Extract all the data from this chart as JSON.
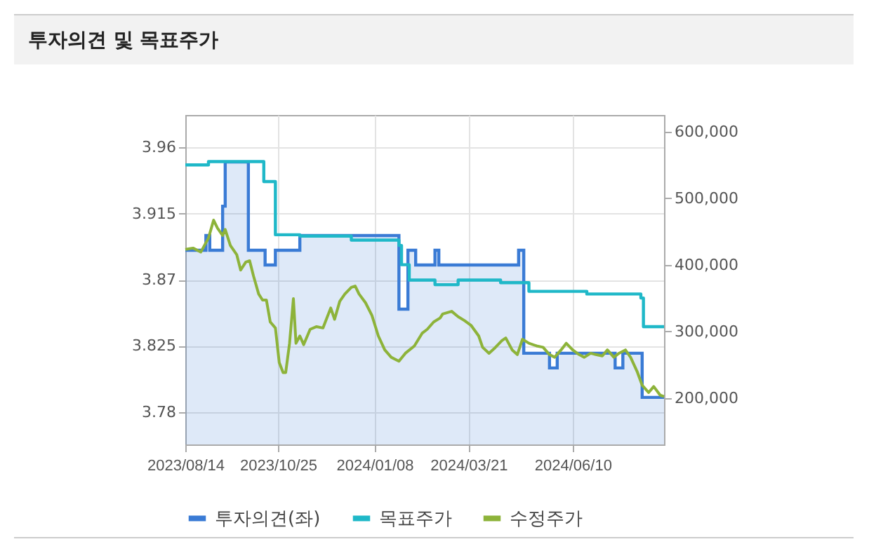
{
  "chart_data": {
    "type": "line",
    "title": "투자의견 및 목표주가",
    "xlim": [
      "2023-08-14",
      "2024-08-20"
    ],
    "xticks": [
      {
        "value": "2023-08-14",
        "label": "2023/08/14"
      },
      {
        "value": "2023-10-25",
        "label": "2023/10/25"
      },
      {
        "value": "2024-01-08",
        "label": "2024/01/08"
      },
      {
        "value": "2024-03-21",
        "label": "2024/03/21"
      },
      {
        "value": "2024-06-10",
        "label": "2024/06/10"
      }
    ],
    "ylim": [
      3.758,
      3.982
    ],
    "yticks": [
      3.78,
      3.825,
      3.87,
      3.915,
      3.96
    ],
    "y2lim": [
      130000,
      625000
    ],
    "y2ticks": [
      {
        "value": 200000,
        "label": "200,000"
      },
      {
        "value": 300000,
        "label": "300,000"
      },
      {
        "value": 400000,
        "label": "400,000"
      },
      {
        "value": 500000,
        "label": "500,000"
      },
      {
        "value": 600000,
        "label": "600,000"
      }
    ],
    "grid": true,
    "legend": "bottom",
    "marker": "none",
    "series": [
      {
        "name": "투자의견(좌)",
        "type": "area",
        "color": "#3a7bd5",
        "x": [
          "2023-08-14",
          "2023-08-30",
          "2023-08-30",
          "2023-09-02",
          "2023-09-02",
          "2023-09-12",
          "2023-09-12",
          "2023-09-14",
          "2023-09-14",
          "2023-10-02",
          "2023-10-02",
          "2023-10-15",
          "2023-10-15",
          "2023-10-23",
          "2023-10-23",
          "2023-11-11",
          "2023-11-11",
          "2024-01-27",
          "2024-01-27",
          "2024-02-03",
          "2024-02-03",
          "2024-02-09",
          "2024-02-09",
          "2024-02-24",
          "2024-02-24",
          "2024-02-27",
          "2024-02-27",
          "2024-04-29",
          "2024-04-29",
          "2024-05-03",
          "2024-05-03",
          "2024-05-23",
          "2024-05-23",
          "2024-05-29",
          "2024-05-29",
          "2024-07-13",
          "2024-07-13",
          "2024-07-19",
          "2024-07-19",
          "2024-08-03",
          "2024-08-03",
          "2024-08-20"
        ],
        "values": [
          3.89,
          3.89,
          3.9,
          3.9,
          3.89,
          3.89,
          3.92,
          3.92,
          3.95,
          3.95,
          3.89,
          3.89,
          3.88,
          3.88,
          3.89,
          3.89,
          3.9,
          3.9,
          3.85,
          3.85,
          3.89,
          3.89,
          3.88,
          3.88,
          3.89,
          3.89,
          3.88,
          3.88,
          3.89,
          3.89,
          3.82,
          3.82,
          3.81,
          3.81,
          3.82,
          3.82,
          3.81,
          3.81,
          3.82,
          3.82,
          3.79,
          3.79
        ]
      },
      {
        "name": "목표주가",
        "type": "step",
        "axis": "y2",
        "color": "#1fb8c8",
        "x": [
          "2023-08-14",
          "2023-09-01",
          "2023-10-14",
          "2023-10-23",
          "2023-11-11",
          "2023-12-21",
          "2024-01-27",
          "2024-01-29",
          "2024-02-04",
          "2024-02-24",
          "2024-03-13",
          "2024-04-15",
          "2024-05-07",
          "2024-06-21",
          "2024-08-02",
          "2024-08-04",
          "2024-08-20"
        ],
        "values": [
          550000,
          555000,
          525000,
          445000,
          443000,
          437000,
          429000,
          400000,
          377000,
          370000,
          377000,
          373000,
          360000,
          356000,
          350000,
          307000,
          307000
        ]
      },
      {
        "name": "수정주가",
        "type": "line",
        "axis": "y2",
        "color": "#8db33a",
        "x": [
          "2023-08-14",
          "2023-08-20",
          "2023-08-26",
          "2023-09-01",
          "2023-09-05",
          "2023-09-08",
          "2023-09-12",
          "2023-09-14",
          "2023-09-18",
          "2023-09-23",
          "2023-09-26",
          "2023-09-30",
          "2023-10-03",
          "2023-10-06",
          "2023-10-10",
          "2023-10-13",
          "2023-10-16",
          "2023-10-19",
          "2023-10-23",
          "2023-10-26",
          "2023-10-29",
          "2023-10-31",
          "2023-11-03",
          "2023-11-06",
          "2023-11-08",
          "2023-11-11",
          "2023-11-14",
          "2023-11-19",
          "2023-11-24",
          "2023-11-29",
          "2023-12-05",
          "2023-12-08",
          "2023-12-12",
          "2023-12-16",
          "2023-12-21",
          "2023-12-24",
          "2023-12-27",
          "2024-01-01",
          "2024-01-06",
          "2024-01-11",
          "2024-01-16",
          "2024-01-21",
          "2024-01-27",
          "2024-02-01",
          "2024-02-08",
          "2024-02-14",
          "2024-02-18",
          "2024-02-23",
          "2024-02-28",
          "2024-03-01",
          "2024-03-08",
          "2024-03-13",
          "2024-03-18",
          "2024-03-23",
          "2024-03-29",
          "2024-04-01",
          "2024-04-06",
          "2024-04-10",
          "2024-04-16",
          "2024-04-19",
          "2024-04-24",
          "2024-04-28",
          "2024-05-02",
          "2024-05-07",
          "2024-05-13",
          "2024-05-18",
          "2024-05-23",
          "2024-05-27",
          "2024-06-01",
          "2024-06-05",
          "2024-06-10",
          "2024-06-15",
          "2024-06-19",
          "2024-06-24",
          "2024-06-28",
          "2024-07-03",
          "2024-07-07",
          "2024-07-12",
          "2024-07-16",
          "2024-07-21",
          "2024-07-25",
          "2024-07-30",
          "2024-08-03",
          "2024-08-08",
          "2024-08-12",
          "2024-08-17",
          "2024-08-20"
        ],
        "values": [
          423000,
          425000,
          419000,
          440000,
          467000,
          455000,
          444000,
          453000,
          429000,
          415000,
          392000,
          404000,
          406000,
          383000,
          356000,
          347000,
          347000,
          314000,
          305000,
          253000,
          238000,
          238000,
          282000,
          349000,
          282000,
          293000,
          280000,
          303000,
          307000,
          305000,
          335000,
          318000,
          345000,
          356000,
          366000,
          368000,
          356000,
          343000,
          324000,
          293000,
          272000,
          261000,
          255000,
          267000,
          278000,
          297000,
          303000,
          314000,
          320000,
          326000,
          330000,
          322000,
          316000,
          309000,
          293000,
          276000,
          267000,
          274000,
          286000,
          290000,
          272000,
          265000,
          288000,
          282000,
          278000,
          276000,
          265000,
          261000,
          272000,
          282000,
          272000,
          265000,
          261000,
          267000,
          265000,
          263000,
          272000,
          261000,
          267000,
          272000,
          261000,
          240000,
          219000,
          208000,
          217000,
          204000,
          202000
        ]
      }
    ]
  }
}
